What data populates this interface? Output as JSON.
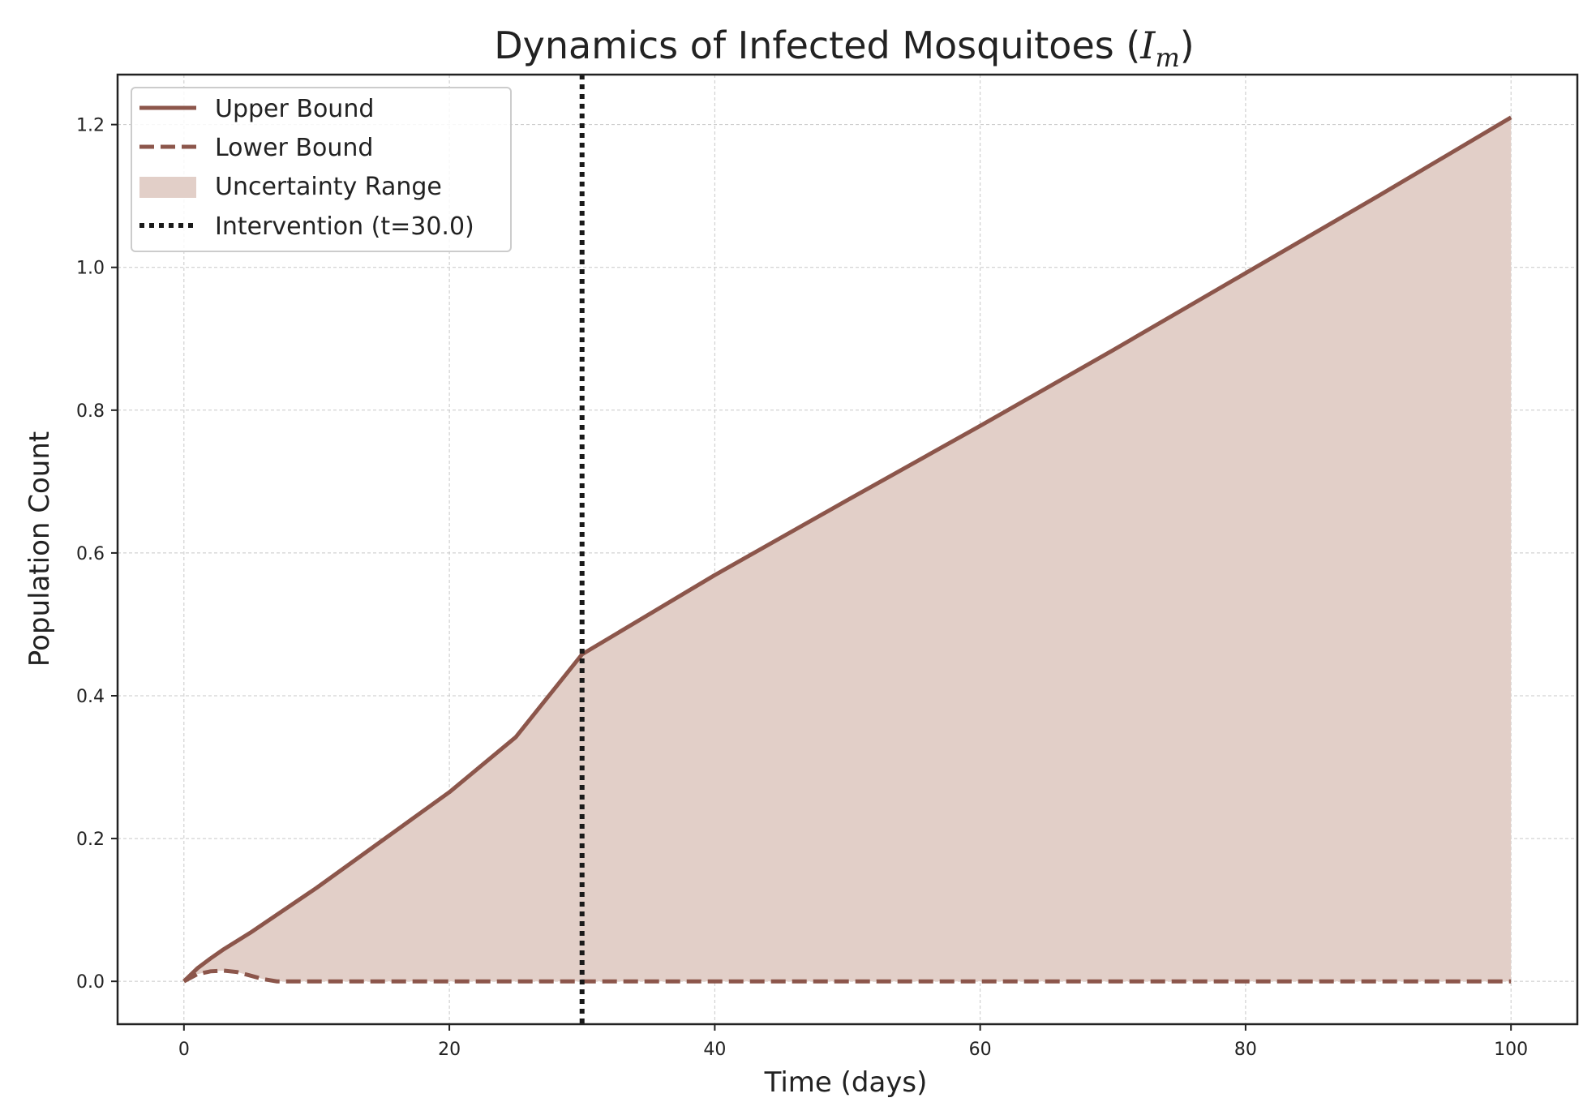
{
  "chart_data": {
    "type": "line",
    "title": "Dynamics of Infected Mosquitoes (",
    "title_symbol": "I",
    "title_subscript": "m",
    "title_close": ")",
    "xlabel": "Time (days)",
    "ylabel": "Population Count",
    "xlim": [
      -5,
      105
    ],
    "ylim": [
      -0.06,
      1.27
    ],
    "xticks": [
      0,
      20,
      40,
      60,
      80,
      100
    ],
    "xtick_labels": [
      "0",
      "20",
      "40",
      "60",
      "80",
      "100"
    ],
    "yticks": [
      0.0,
      0.2,
      0.4,
      0.6,
      0.8,
      1.0,
      1.2
    ],
    "ytick_labels": [
      "0.0",
      "0.2",
      "0.4",
      "0.6",
      "0.8",
      "1.0",
      "1.2"
    ],
    "grid": true,
    "legend_position": "top-left",
    "series": [
      {
        "name": "Upper Bound",
        "style": "solid",
        "color": "#8c564b",
        "x": [
          0,
          1,
          2,
          3,
          5,
          10,
          15,
          20,
          25,
          30,
          40,
          50,
          60,
          70,
          80,
          90,
          100
        ],
        "y": [
          0,
          0.018,
          0.032,
          0.045,
          0.068,
          0.131,
          0.198,
          0.265,
          0.342,
          0.458,
          0.569,
          0.674,
          0.778,
          0.884,
          0.992,
          1.1,
          1.21
        ]
      },
      {
        "name": "Lower Bound",
        "style": "dashed",
        "color": "#8c564b",
        "x": [
          0,
          1,
          2,
          3,
          4,
          5,
          6,
          7,
          10,
          30,
          50,
          100
        ],
        "y": [
          0,
          0.01,
          0.014,
          0.015,
          0.013,
          0.008,
          0.003,
          0,
          0,
          0,
          0,
          0
        ]
      }
    ],
    "fill": {
      "name": "Uncertainty Range",
      "color": "#e2cfc8"
    },
    "intervention": {
      "name": "Intervention (t=30.0)",
      "x": 30,
      "color": "#1a1a1a",
      "style": "dotted"
    }
  }
}
